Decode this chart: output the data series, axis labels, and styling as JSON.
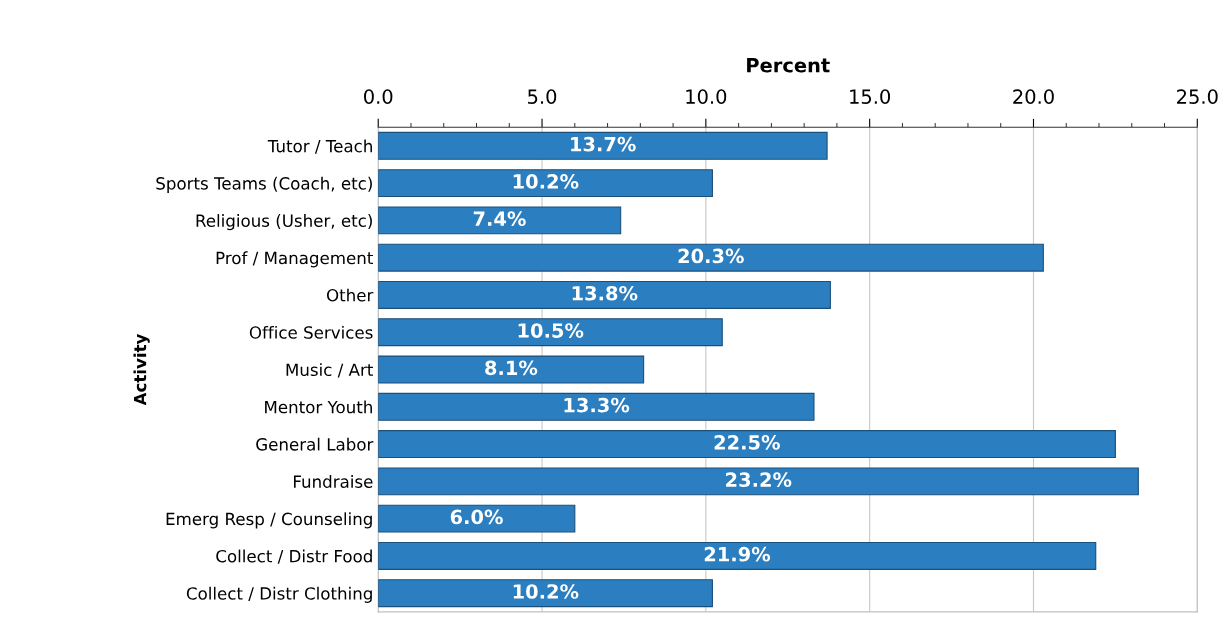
{
  "chart_data": {
    "type": "bar",
    "orientation": "horizontal",
    "xlabel": "Percent",
    "ylabel": "Activity",
    "categories": [
      "Tutor / Teach",
      "Sports Teams (Coach, etc)",
      "Religious (Usher, etc)",
      "Prof / Management",
      "Other",
      "Office Services",
      "Music / Art",
      "Mentor Youth",
      "General Labor",
      "Fundraise",
      "Emerg Resp / Counseling",
      "Collect / Distr Food",
      "Collect / Distr Clothing"
    ],
    "values": [
      13.7,
      10.2,
      7.4,
      20.3,
      13.8,
      10.5,
      8.1,
      13.3,
      22.5,
      23.2,
      6.0,
      21.9,
      10.2
    ],
    "value_labels": [
      "13.7%",
      "10.2%",
      "7.4%",
      "20.3%",
      "13.8%",
      "10.5%",
      "8.1%",
      "13.3%",
      "22.5%",
      "23.2%",
      "6.0%",
      "21.9%",
      "10.2%"
    ],
    "color": "#2b7fc0",
    "xlim": [
      0,
      25
    ],
    "xticks": [
      {
        "value": 0,
        "label": "0.0"
      },
      {
        "value": 5,
        "label": "5.0"
      },
      {
        "value": 10,
        "label": "10.0"
      },
      {
        "value": 15,
        "label": "15.0"
      },
      {
        "value": 20,
        "label": "20.0"
      },
      {
        "value": 25,
        "label": "25.0"
      }
    ],
    "grid": "x"
  }
}
